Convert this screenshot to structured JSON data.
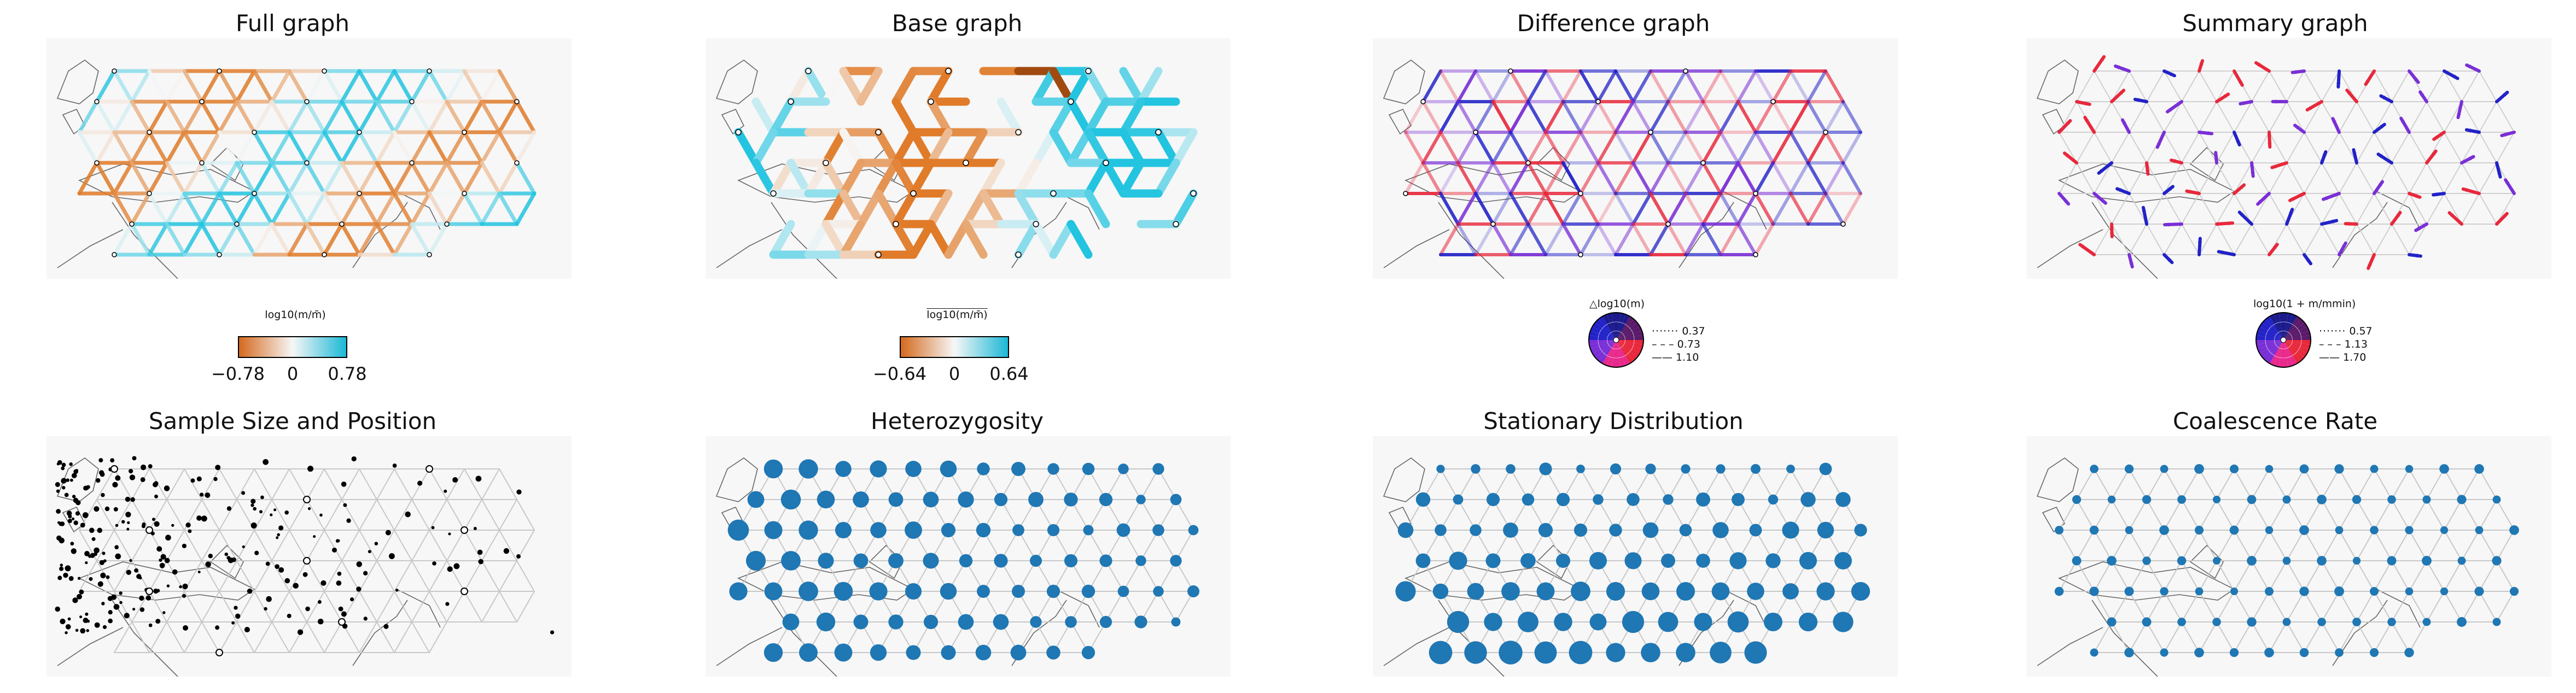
{
  "panels": {
    "full_graph": {
      "title": "Full graph"
    },
    "base_graph": {
      "title": "Base graph"
    },
    "difference_graph": {
      "title": "Difference graph"
    },
    "summary_graph": {
      "title": "Summary graph"
    },
    "sample_size": {
      "title": "Sample Size and Position"
    },
    "heterozygosity": {
      "title": "Heterozygosity"
    },
    "stationary": {
      "title": "Stationary Distribution"
    },
    "coalescence": {
      "title": "Coalescence Rate"
    }
  },
  "legends": {
    "full": {
      "label": "log10(m/m̄)",
      "ticks": [
        "−0.78",
        "0",
        "0.78"
      ],
      "colors": [
        "#d4691e",
        "#f7f7f7",
        "#1bb8d6"
      ]
    },
    "base": {
      "label": "log10(m/m̄)",
      "ticks": [
        "−0.64",
        "0",
        "0.64"
      ],
      "colors": [
        "#d4691e",
        "#f7f7f7",
        "#1bb8d6"
      ]
    },
    "difference": {
      "label": "△log10(m)",
      "keys": [
        "0.37",
        "0.73",
        "1.10"
      ]
    },
    "summary": {
      "label": "log10(1 + m/mmin)",
      "keys": [
        "0.57",
        "1.13",
        "1.70"
      ]
    }
  },
  "colors": {
    "orange": "#e07b29",
    "cyan": "#22c4e0",
    "red": "#e8283c",
    "purple": "#7a2fd6",
    "blue": "#2222c8",
    "node_blue": "#1f77b4",
    "map_bg": "#f7f7f7"
  }
}
